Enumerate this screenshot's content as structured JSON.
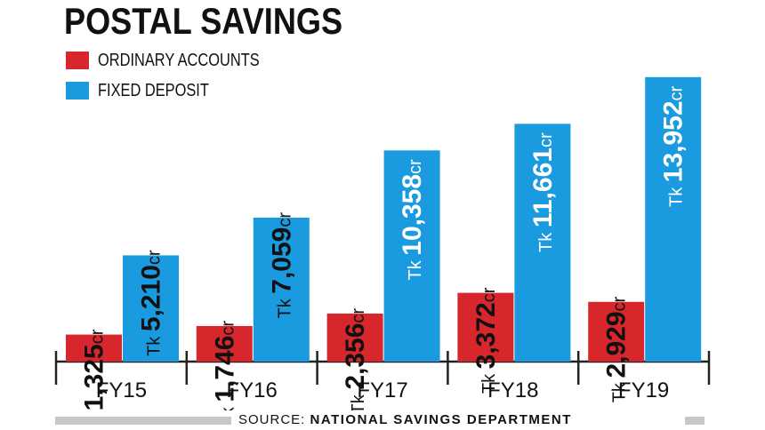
{
  "colors": {
    "ordinary": "#d7262c",
    "fixed": "#1a9be0",
    "axis": "#222222",
    "source_bar": "#c8c8c8"
  },
  "chart_data": {
    "type": "bar",
    "title": "POSTAL SAVINGS",
    "categories": [
      "FY15",
      "FY16",
      "FY17",
      "FY18",
      "FY19"
    ],
    "series": [
      {
        "name": "ORDINARY ACCOUNTS",
        "values": [
          1325,
          1746,
          2356,
          3372,
          2929
        ],
        "labels": [
          "1,325",
          "1,746",
          "2,356",
          "3,372",
          "2,929"
        ]
      },
      {
        "name": "FIXED DEPOSIT",
        "values": [
          5210,
          7059,
          10358,
          11661,
          13952
        ],
        "labels": [
          "5,210",
          "7,059",
          "10,358",
          "11,661",
          "13,952"
        ]
      }
    ],
    "label_prefix": "Tk",
    "label_suffix": "cr",
    "legend_position": "top-left",
    "grid": false
  },
  "source": {
    "prefix": "SOURCE:",
    "name": "NATIONAL SAVINGS DEPARTMENT"
  }
}
